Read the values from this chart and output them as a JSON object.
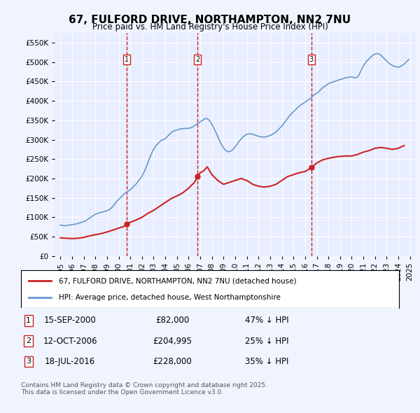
{
  "title": "67, FULFORD DRIVE, NORTHAMPTON, NN2 7NU",
  "subtitle": "Price paid vs. HM Land Registry's House Price Index (HPI)",
  "background_color": "#f0f4ff",
  "plot_bg_color": "#e8eeff",
  "grid_color": "#ffffff",
  "hpi_color": "#6699cc",
  "price_color": "#cc2222",
  "marker_color": "#cc2222",
  "vline_color": "#cc2222",
  "ylim": [
    0,
    575000
  ],
  "yticks": [
    0,
    50000,
    100000,
    150000,
    200000,
    250000,
    300000,
    350000,
    400000,
    450000,
    500000,
    550000
  ],
  "ylabel_format": "£{0}K",
  "xlabel_start": 1995,
  "xlabel_end": 2025,
  "transactions": [
    {
      "label": "1",
      "date_str": "15-SEP-2000",
      "date_num": 2000.71,
      "price": 82000,
      "pct": "47%",
      "dir": "↓"
    },
    {
      "label": "2",
      "date_str": "12-OCT-2006",
      "date_num": 2006.78,
      "price": 204995,
      "pct": "25%",
      "dir": "↓"
    },
    {
      "label": "3",
      "date_str": "18-JUL-2016",
      "date_num": 2016.54,
      "price": 228000,
      "pct": "35%",
      "dir": "↓"
    }
  ],
  "legend_line1": "67, FULFORD DRIVE, NORTHAMPTON, NN2 7NU (detached house)",
  "legend_line2": "HPI: Average price, detached house, West Northamptonshire",
  "footnote": "Contains HM Land Registry data © Crown copyright and database right 2025.\nThis data is licensed under the Open Government Licence v3.0.",
  "hpi_data": {
    "years": [
      1995.0,
      1995.1,
      1995.2,
      1995.3,
      1995.4,
      1995.5,
      1995.6,
      1995.7,
      1995.8,
      1995.9,
      1996.0,
      1996.1,
      1996.2,
      1996.3,
      1996.4,
      1996.5,
      1996.6,
      1996.7,
      1996.8,
      1996.9,
      1997.0,
      1997.1,
      1997.2,
      1997.3,
      1997.4,
      1997.5,
      1997.6,
      1997.7,
      1997.8,
      1997.9,
      1998.0,
      1998.1,
      1998.2,
      1998.3,
      1998.4,
      1998.5,
      1998.6,
      1998.7,
      1998.8,
      1998.9,
      1999.0,
      1999.1,
      1999.2,
      1999.3,
      1999.4,
      1999.5,
      1999.6,
      1999.7,
      1999.8,
      1999.9,
      2000.0,
      2000.1,
      2000.2,
      2000.3,
      2000.4,
      2000.5,
      2000.6,
      2000.7,
      2000.8,
      2000.9,
      2001.0,
      2001.1,
      2001.2,
      2001.3,
      2001.4,
      2001.5,
      2001.6,
      2001.7,
      2001.8,
      2001.9,
      2002.0,
      2002.1,
      2002.2,
      2002.3,
      2002.4,
      2002.5,
      2002.6,
      2002.7,
      2002.8,
      2002.9,
      2003.0,
      2003.1,
      2003.2,
      2003.3,
      2003.4,
      2003.5,
      2003.6,
      2003.7,
      2003.8,
      2003.9,
      2004.0,
      2004.1,
      2004.2,
      2004.3,
      2004.4,
      2004.5,
      2004.6,
      2004.7,
      2004.8,
      2004.9,
      2005.0,
      2005.1,
      2005.2,
      2005.3,
      2005.4,
      2005.5,
      2005.6,
      2005.7,
      2005.8,
      2005.9,
      2006.0,
      2006.1,
      2006.2,
      2006.3,
      2006.4,
      2006.5,
      2006.6,
      2006.7,
      2006.8,
      2006.9,
      2007.0,
      2007.1,
      2007.2,
      2007.3,
      2007.4,
      2007.5,
      2007.6,
      2007.7,
      2007.8,
      2007.9,
      2008.0,
      2008.1,
      2008.2,
      2008.3,
      2008.4,
      2008.5,
      2008.6,
      2008.7,
      2008.8,
      2008.9,
      2009.0,
      2009.1,
      2009.2,
      2009.3,
      2009.4,
      2009.5,
      2009.6,
      2009.7,
      2009.8,
      2009.9,
      2010.0,
      2010.1,
      2010.2,
      2010.3,
      2010.4,
      2010.5,
      2010.6,
      2010.7,
      2010.8,
      2010.9,
      2011.0,
      2011.1,
      2011.2,
      2011.3,
      2011.4,
      2011.5,
      2011.6,
      2011.7,
      2011.8,
      2011.9,
      2012.0,
      2012.1,
      2012.2,
      2012.3,
      2012.4,
      2012.5,
      2012.6,
      2012.7,
      2012.8,
      2012.9,
      2013.0,
      2013.1,
      2013.2,
      2013.3,
      2013.4,
      2013.5,
      2013.6,
      2013.7,
      2013.8,
      2013.9,
      2014.0,
      2014.1,
      2014.2,
      2014.3,
      2014.4,
      2014.5,
      2014.6,
      2014.7,
      2014.8,
      2014.9,
      2015.0,
      2015.1,
      2015.2,
      2015.3,
      2015.4,
      2015.5,
      2015.6,
      2015.7,
      2015.8,
      2015.9,
      2016.0,
      2016.1,
      2016.2,
      2016.3,
      2016.4,
      2016.5,
      2016.6,
      2016.7,
      2016.8,
      2016.9,
      2017.0,
      2017.1,
      2017.2,
      2017.3,
      2017.4,
      2017.5,
      2017.6,
      2017.7,
      2017.8,
      2017.9,
      2018.0,
      2018.1,
      2018.2,
      2018.3,
      2018.4,
      2018.5,
      2018.6,
      2018.7,
      2018.8,
      2018.9,
      2019.0,
      2019.1,
      2019.2,
      2019.3,
      2019.4,
      2019.5,
      2019.6,
      2019.7,
      2019.8,
      2019.9,
      2020.0,
      2020.1,
      2020.2,
      2020.3,
      2020.4,
      2020.5,
      2020.6,
      2020.7,
      2020.8,
      2020.9,
      2021.0,
      2021.1,
      2021.2,
      2021.3,
      2021.4,
      2021.5,
      2021.6,
      2021.7,
      2021.8,
      2021.9,
      2022.0,
      2022.1,
      2022.2,
      2022.3,
      2022.4,
      2022.5,
      2022.6,
      2022.7,
      2022.8,
      2022.9,
      2023.0,
      2023.1,
      2023.2,
      2023.3,
      2023.4,
      2023.5,
      2023.6,
      2023.7,
      2023.8,
      2023.9,
      2024.0,
      2024.1,
      2024.2,
      2024.3,
      2024.4,
      2024.5,
      2024.6,
      2024.7,
      2024.8,
      2024.9
    ],
    "values": [
      80000,
      79500,
      79000,
      78500,
      78000,
      78500,
      79000,
      79500,
      80000,
      80500,
      81000,
      81500,
      82000,
      82500,
      83000,
      84000,
      85000,
      86000,
      87000,
      88000,
      89000,
      90000,
      92000,
      94000,
      96000,
      98000,
      100000,
      102000,
      104000,
      106000,
      108000,
      109000,
      110000,
      111000,
      112000,
      113000,
      113500,
      114000,
      115000,
      116000,
      117000,
      118000,
      120000,
      122000,
      125000,
      128000,
      132000,
      136000,
      140000,
      143000,
      146000,
      149000,
      152000,
      155000,
      158000,
      161000,
      163000,
      165000,
      167000,
      169000,
      171000,
      174000,
      177000,
      180000,
      183000,
      186000,
      190000,
      194000,
      198000,
      202000,
      206000,
      212000,
      218000,
      225000,
      232000,
      240000,
      248000,
      256000,
      263000,
      270000,
      275000,
      280000,
      285000,
      288000,
      291000,
      294000,
      297000,
      299000,
      300000,
      301000,
      303000,
      306000,
      309000,
      312000,
      315000,
      318000,
      320000,
      322000,
      323000,
      324000,
      325000,
      326000,
      327000,
      327500,
      328000,
      328500,
      329000,
      329000,
      329000,
      329000,
      329500,
      330000,
      331000,
      332000,
      334000,
      336000,
      338000,
      340000,
      342000,
      344000,
      346000,
      348000,
      350000,
      352000,
      354000,
      355000,
      354000,
      352000,
      349000,
      345000,
      340000,
      334000,
      328000,
      322000,
      315000,
      308000,
      301000,
      295000,
      289000,
      284000,
      279000,
      275000,
      272000,
      270000,
      269000,
      269000,
      270000,
      272000,
      275000,
      278000,
      282000,
      286000,
      290000,
      294000,
      298000,
      302000,
      305000,
      308000,
      310000,
      312000,
      314000,
      315000,
      315000,
      315000,
      315000,
      314000,
      313000,
      312000,
      311000,
      310000,
      309000,
      308000,
      307000,
      307000,
      307000,
      307000,
      307000,
      308000,
      309000,
      310000,
      311000,
      312000,
      314000,
      316000,
      318000,
      320000,
      323000,
      326000,
      329000,
      332000,
      335000,
      339000,
      343000,
      347000,
      351000,
      355000,
      359000,
      363000,
      366000,
      369000,
      372000,
      375000,
      378000,
      381000,
      384000,
      387000,
      389000,
      391000,
      393000,
      395000,
      397000,
      399000,
      401000,
      403000,
      405000,
      408000,
      411000,
      414000,
      416000,
      418000,
      420000,
      422000,
      425000,
      428000,
      431000,
      434000,
      436000,
      438000,
      440000,
      442000,
      444000,
      446000,
      447000,
      448000,
      449000,
      450000,
      451000,
      452000,
      453000,
      454000,
      455000,
      456000,
      457000,
      458000,
      459000,
      460000,
      460500,
      461000,
      461500,
      462000,
      462000,
      461000,
      460000,
      459000,
      460000,
      462000,
      466000,
      472000,
      478000,
      484000,
      490000,
      495000,
      499000,
      503000,
      506000,
      509000,
      512000,
      515000,
      517000,
      519000,
      521000,
      522000,
      522000,
      521000,
      520000,
      518000,
      515000,
      512000,
      509000,
      506000,
      503000,
      500000,
      497000,
      495000,
      493000,
      491000,
      490000,
      489000,
      488000,
      487000,
      487000,
      488000,
      489000,
      491000,
      493000,
      495000,
      498000,
      501000,
      504000,
      507000
    ]
  },
  "price_data": {
    "years": [
      1995.0,
      1995.5,
      1996.0,
      1996.5,
      1997.0,
      1997.5,
      1998.0,
      1998.5,
      1999.0,
      1999.5,
      2000.0,
      2000.5,
      2000.71,
      2001.0,
      2001.5,
      2002.0,
      2002.5,
      2003.0,
      2003.5,
      2004.0,
      2004.5,
      2005.0,
      2005.5,
      2006.0,
      2006.5,
      2006.78,
      2007.0,
      2007.3,
      2007.6,
      2008.0,
      2008.5,
      2009.0,
      2009.5,
      2010.0,
      2010.5,
      2011.0,
      2011.5,
      2012.0,
      2012.5,
      2013.0,
      2013.5,
      2014.0,
      2014.5,
      2015.0,
      2015.5,
      2016.0,
      2016.54,
      2017.0,
      2017.5,
      2018.0,
      2018.5,
      2019.0,
      2019.5,
      2020.0,
      2020.5,
      2021.0,
      2021.5,
      2022.0,
      2022.5,
      2023.0,
      2023.5,
      2024.0,
      2024.5
    ],
    "values": [
      47000,
      46000,
      45000,
      46000,
      48000,
      52000,
      55000,
      58000,
      62000,
      67000,
      72000,
      77000,
      82000,
      87000,
      93000,
      100000,
      110000,
      118000,
      128000,
      138000,
      148000,
      155000,
      163000,
      175000,
      190000,
      204995,
      215000,
      220000,
      230000,
      210000,
      195000,
      185000,
      190000,
      195000,
      200000,
      195000,
      185000,
      180000,
      178000,
      180000,
      185000,
      195000,
      205000,
      210000,
      215000,
      218000,
      228000,
      240000,
      248000,
      252000,
      255000,
      257000,
      258000,
      258000,
      262000,
      268000,
      272000,
      278000,
      280000,
      278000,
      275000,
      278000,
      285000
    ]
  }
}
